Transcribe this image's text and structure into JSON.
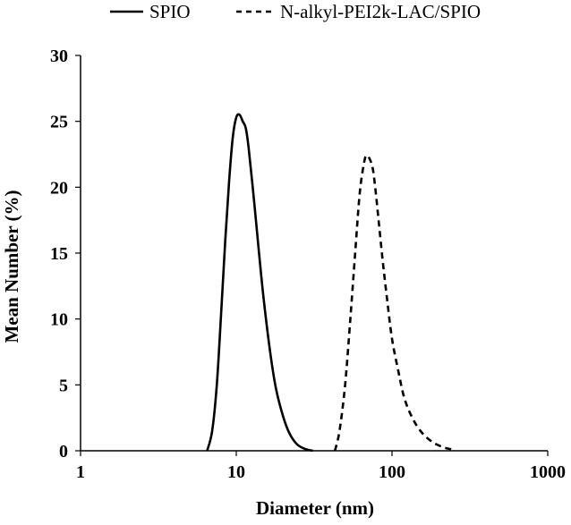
{
  "chart_data": {
    "type": "line",
    "title": "",
    "xlabel": "Diameter (nm)",
    "ylabel": "Mean Number (%)",
    "x_scale": "log",
    "xlim": [
      1,
      1000
    ],
    "ylim": [
      0,
      30
    ],
    "x_ticks": [
      1,
      10,
      100,
      1000
    ],
    "x_tick_labels": [
      "1",
      "10",
      "100",
      "1000"
    ],
    "y_ticks": [
      0,
      5,
      10,
      15,
      20,
      25,
      30
    ],
    "y_tick_labels": [
      "0",
      "5",
      "10",
      "15",
      "20",
      "25",
      "30"
    ],
    "grid": false,
    "legend_position": "top",
    "series": [
      {
        "name": "SPIO",
        "line_style": "solid",
        "color": "#000000",
        "points": [
          [
            6.5,
            0.0
          ],
          [
            7.0,
            1.5
          ],
          [
            7.5,
            5.0
          ],
          [
            8.0,
            10.5
          ],
          [
            8.5,
            16.0
          ],
          [
            9.0,
            20.5
          ],
          [
            9.5,
            23.8
          ],
          [
            10.0,
            25.3
          ],
          [
            10.5,
            25.5
          ],
          [
            11.0,
            25.0
          ],
          [
            11.5,
            24.5
          ],
          [
            12.0,
            23.0
          ],
          [
            13.0,
            19.0
          ],
          [
            14.0,
            15.0
          ],
          [
            15.0,
            11.5
          ],
          [
            16.5,
            7.5
          ],
          [
            18.0,
            4.7
          ],
          [
            20.0,
            2.6
          ],
          [
            22.0,
            1.3
          ],
          [
            24.5,
            0.5
          ],
          [
            27.5,
            0.15
          ],
          [
            31.0,
            0.0
          ]
        ]
      },
      {
        "name": "N-alkyl-PEI2k-LAC/SPIO",
        "line_style": "dashed",
        "color": "#000000",
        "points": [
          [
            43.0,
            0.0
          ],
          [
            46.0,
            1.5
          ],
          [
            50.0,
            5.0
          ],
          [
            54.0,
            10.0
          ],
          [
            58.0,
            15.0
          ],
          [
            62.0,
            19.5
          ],
          [
            66.0,
            21.8
          ],
          [
            68.5,
            22.4
          ],
          [
            71.5,
            22.2
          ],
          [
            75.0,
            21.5
          ],
          [
            78.0,
            20.0
          ],
          [
            82.0,
            17.5
          ],
          [
            87.0,
            14.5
          ],
          [
            93.0,
            11.5
          ],
          [
            100.0,
            8.5
          ],
          [
            110.0,
            6.0
          ],
          [
            120.0,
            4.0
          ],
          [
            135.0,
            2.5
          ],
          [
            155.0,
            1.4
          ],
          [
            180.0,
            0.7
          ],
          [
            210.0,
            0.3
          ],
          [
            240.0,
            0.1
          ],
          [
            255.0,
            0.0
          ]
        ]
      }
    ]
  }
}
